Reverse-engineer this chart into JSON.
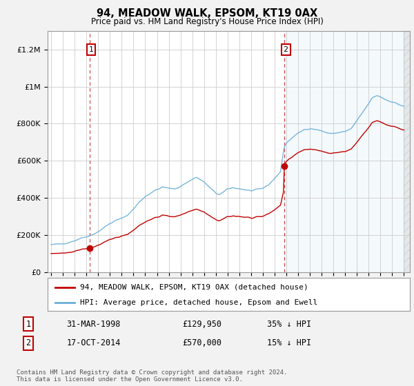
{
  "title": "94, MEADOW WALK, EPSOM, KT19 0AX",
  "subtitle": "Price paid vs. HM Land Registry's House Price Index (HPI)",
  "legend_line1": "94, MEADOW WALK, EPSOM, KT19 0AX (detached house)",
  "legend_line2": "HPI: Average price, detached house, Epsom and Ewell",
  "transaction1_label": "1",
  "transaction1_date": "31-MAR-1998",
  "transaction1_price": "£129,950",
  "transaction1_hpi": "35% ↓ HPI",
  "transaction2_label": "2",
  "transaction2_date": "17-OCT-2014",
  "transaction2_price": "£570,000",
  "transaction2_hpi": "15% ↓ HPI",
  "footer": "Contains HM Land Registry data © Crown copyright and database right 2024.\nThis data is licensed under the Open Government Licence v3.0.",
  "ylim": [
    0,
    1300000
  ],
  "yticks": [
    0,
    200000,
    400000,
    600000,
    800000,
    1000000,
    1200000
  ],
  "ytick_labels": [
    "£0",
    "£200K",
    "£400K",
    "£600K",
    "£800K",
    "£1M",
    "£1.2M"
  ],
  "hpi_color": "#6aaed6",
  "price_color": "#c00000",
  "background_color": "#f2f2f2",
  "plot_bg_color": "#ffffff",
  "transaction1_x": 1998.25,
  "transaction1_y": 129950,
  "transaction2_x": 2014.8,
  "transaction2_y": 570000,
  "vline1_x": 1998.25,
  "vline2_x": 2014.8,
  "xlim_left": 1994.7,
  "xlim_right": 2025.5
}
